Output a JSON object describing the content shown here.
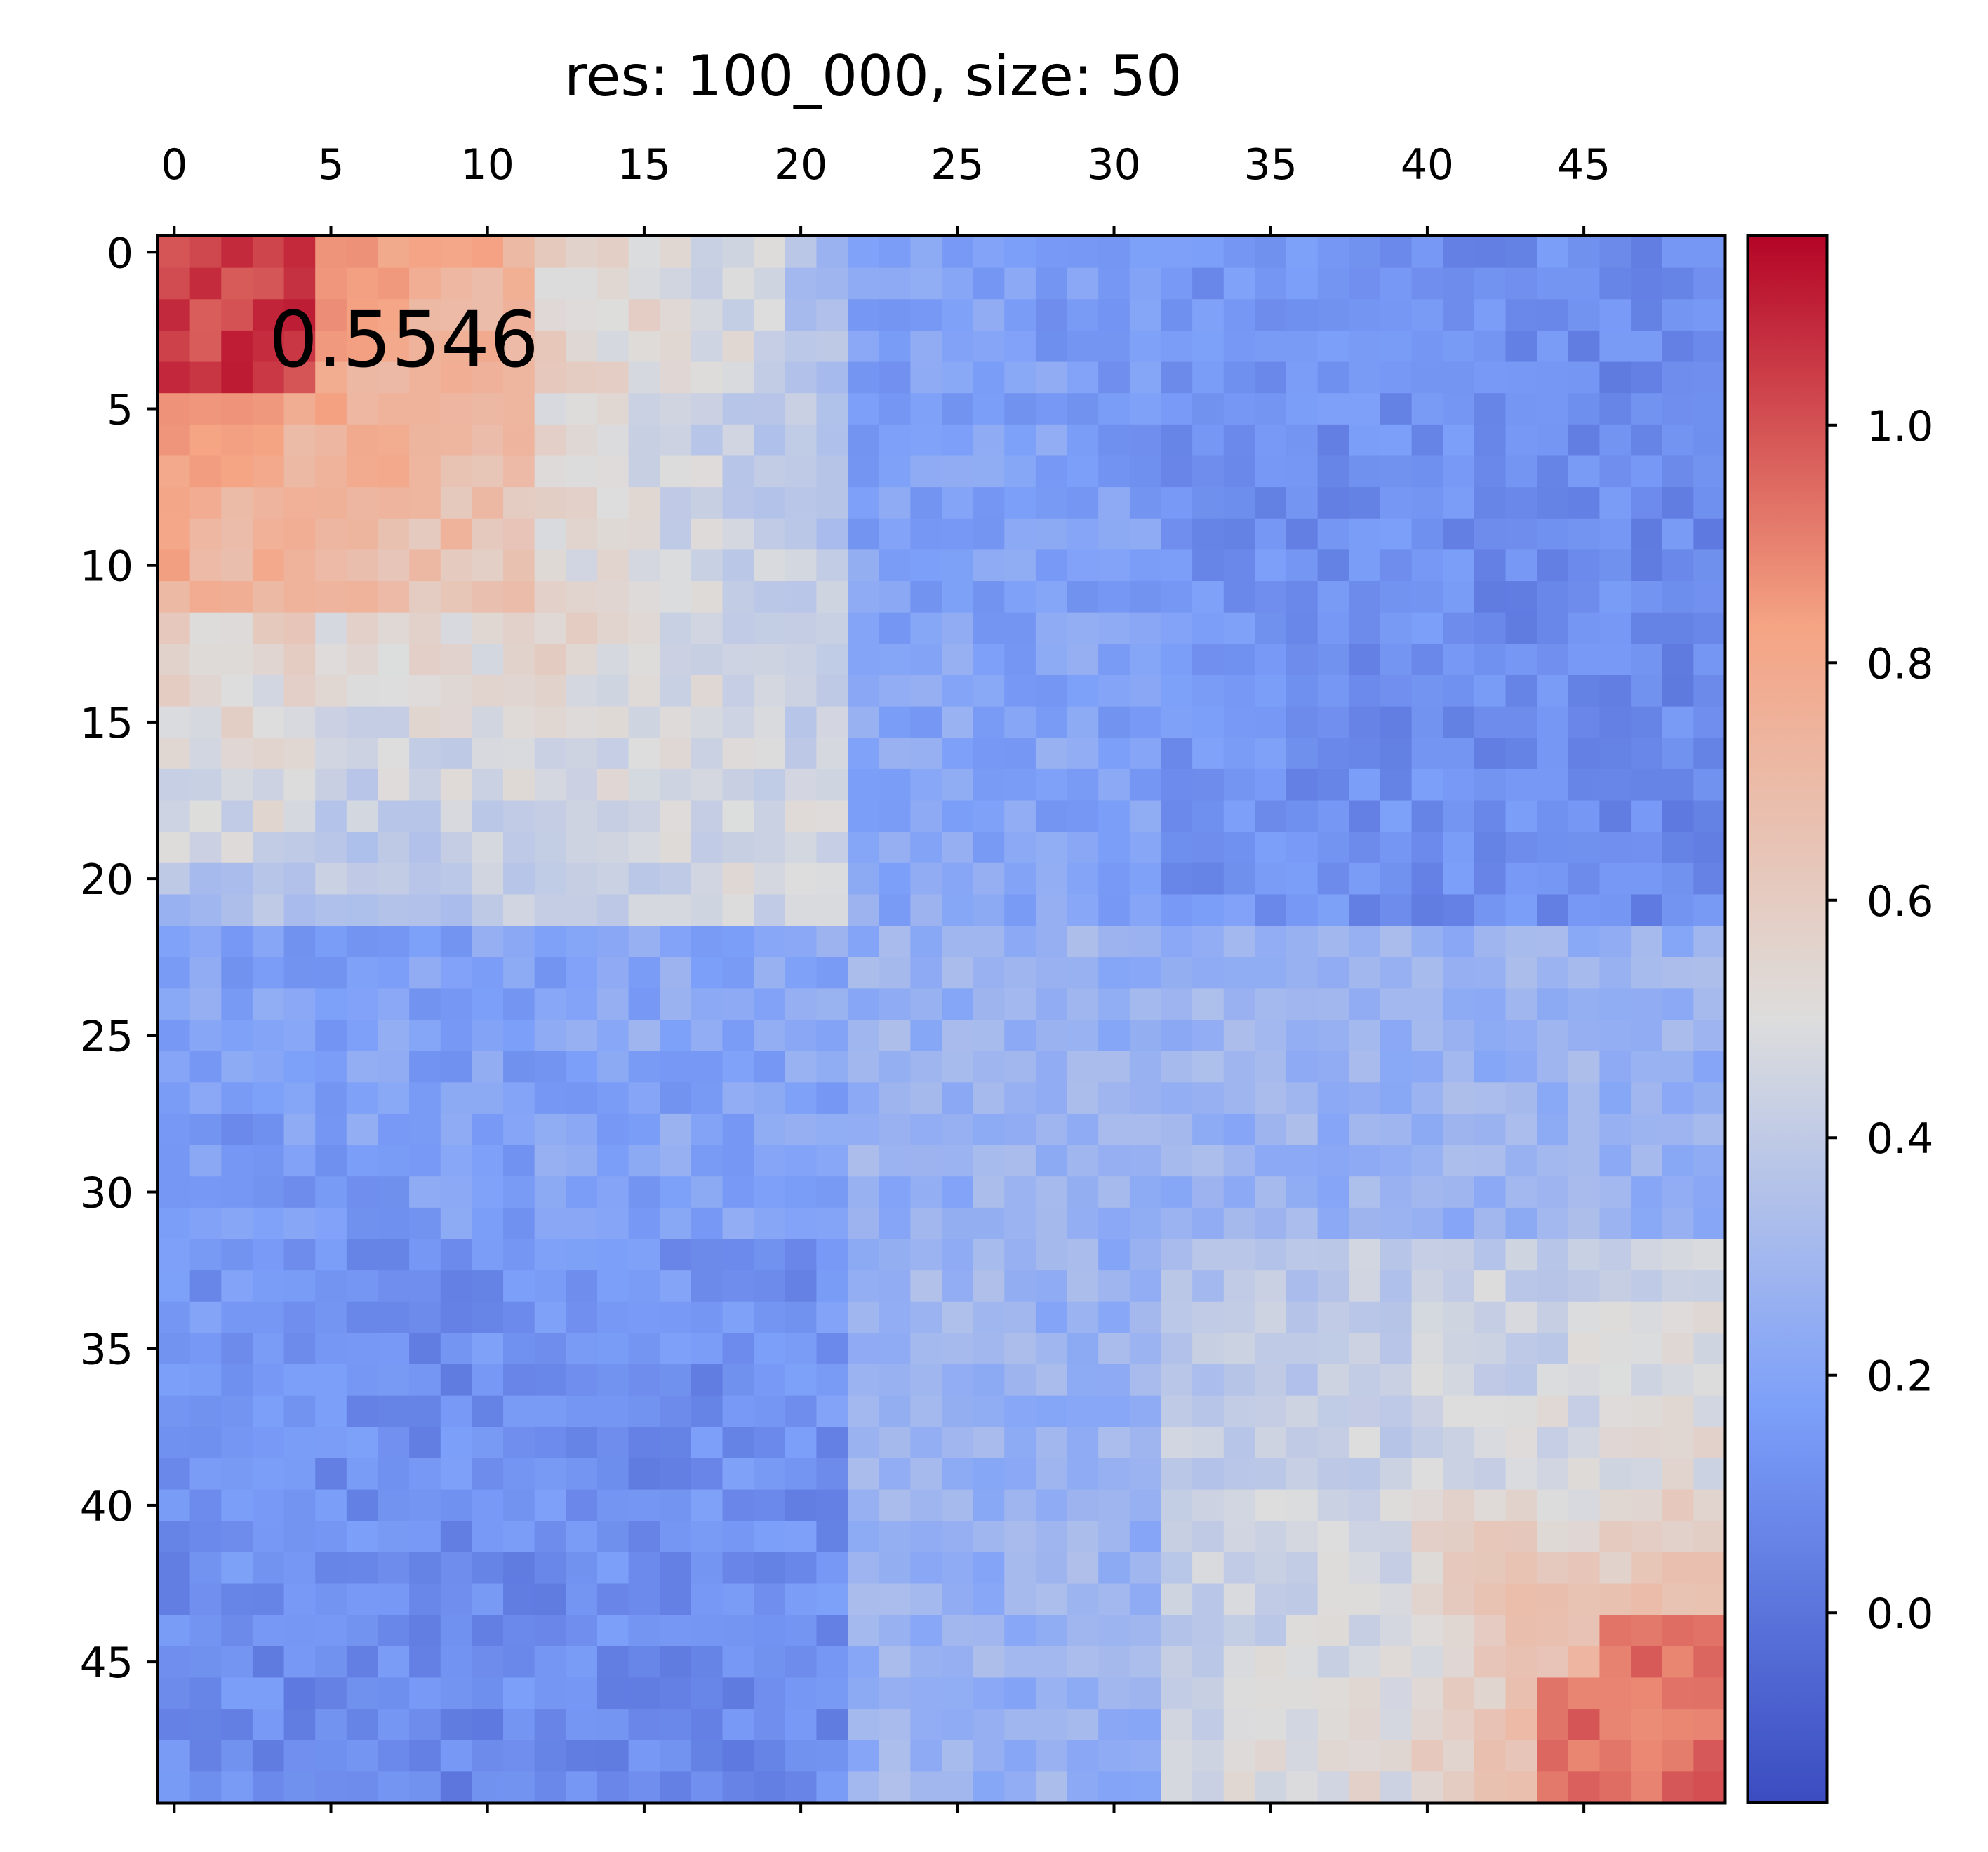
{
  "chart_data": {
    "type": "heatmap",
    "title": "res: 100_000, size: 50",
    "annotation": "0.5546",
    "size": 50,
    "colormap": "coolwarm",
    "vmin": -0.16,
    "vmax": 1.16,
    "x_ticks": [
      0,
      5,
      10,
      15,
      20,
      25,
      30,
      35,
      40,
      45
    ],
    "y_ticks": [
      0,
      5,
      10,
      15,
      20,
      25,
      30,
      35,
      40,
      45
    ],
    "colorbar_ticks": [
      0.0,
      0.2,
      0.4,
      0.6,
      0.8,
      1.0
    ],
    "colorbar_tick_labels": [
      "0.0",
      "0.2",
      "0.4",
      "0.6",
      "0.8",
      "1.0"
    ],
    "block_structure": [
      {
        "rows": [
          0,
          12
        ],
        "cols": [
          0,
          12
        ],
        "mean": 0.85
      },
      {
        "rows": [
          0,
          7
        ],
        "cols": [
          0,
          5
        ],
        "mean": 1.02
      },
      {
        "rows": [
          0,
          22
        ],
        "cols": [
          0,
          22
        ],
        "mean": 0.42
      },
      {
        "rows": [
          32,
          49
        ],
        "cols": [
          32,
          49
        ],
        "mean": 0.55
      },
      {
        "rows": [
          40,
          49
        ],
        "cols": [
          44,
          49
        ],
        "mean": 0.9
      },
      {
        "rows": [
          0,
          20
        ],
        "cols": [
          33,
          49
        ],
        "mean": 0.12
      },
      {
        "rows": [
          30,
          49
        ],
        "cols": [
          0,
          20
        ],
        "mean": 0.1
      }
    ]
  }
}
